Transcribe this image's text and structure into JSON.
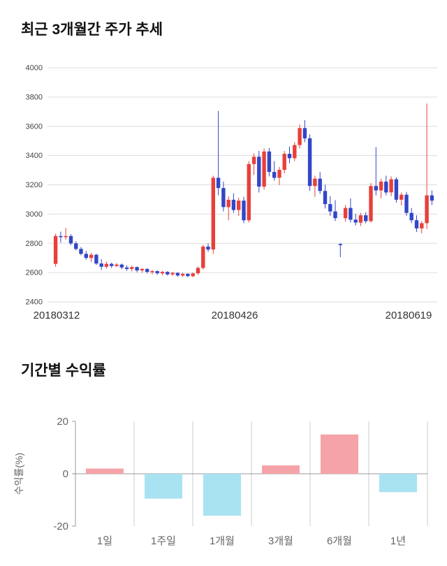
{
  "chart_data": [
    {
      "type": "candlestick",
      "title": "최근 3개월간 주가 추세",
      "ylim": [
        2400,
        4000
      ],
      "yticks": [
        2400,
        2600,
        2800,
        3000,
        3200,
        3400,
        3600,
        3800,
        4000
      ],
      "x_tick_labels": [
        "20180312",
        "20180426",
        "20180619"
      ],
      "grid": true,
      "colors": {
        "up": "#e8403a",
        "down": "#3246c8",
        "grid": "#dddddd",
        "tick_text": "#444444",
        "x_label_text": "#333333"
      },
      "candles": [
        [
          2660,
          2865,
          2640,
          2850
        ],
        [
          2850,
          2880,
          2805,
          2845
        ],
        [
          2845,
          2905,
          2825,
          2850
        ],
        [
          2850,
          2862,
          2788,
          2800
        ],
        [
          2800,
          2815,
          2752,
          2762
        ],
        [
          2762,
          2775,
          2718,
          2728
        ],
        [
          2728,
          2748,
          2688,
          2700
        ],
        [
          2700,
          2735,
          2672,
          2722
        ],
        [
          2722,
          2728,
          2652,
          2662
        ],
        [
          2662,
          2692,
          2618,
          2640
        ],
        [
          2640,
          2675,
          2628,
          2660
        ],
        [
          2660,
          2668,
          2632,
          2645
        ],
        [
          2645,
          2665,
          2638,
          2655
        ],
        [
          2655,
          2662,
          2622,
          2635
        ],
        [
          2635,
          2650,
          2612,
          2625
        ],
        [
          2625,
          2648,
          2608,
          2638
        ],
        [
          2638,
          2642,
          2602,
          2615
        ],
        [
          2615,
          2632,
          2598,
          2625
        ],
        [
          2625,
          2630,
          2595,
          2605
        ],
        [
          2605,
          2618,
          2588,
          2610
        ],
        [
          2610,
          2615,
          2585,
          2595
        ],
        [
          2595,
          2612,
          2582,
          2605
        ],
        [
          2605,
          2610,
          2580,
          2588
        ],
        [
          2588,
          2605,
          2576,
          2598
        ],
        [
          2598,
          2602,
          2572,
          2580
        ],
        [
          2580,
          2598,
          2570,
          2592
        ],
        [
          2592,
          2596,
          2568,
          2576
        ],
        [
          2576,
          2600,
          2568,
          2595
        ],
        [
          2595,
          2642,
          2585,
          2632
        ],
        [
          2632,
          2790,
          2622,
          2778
        ],
        [
          2778,
          2800,
          2742,
          2758
        ],
        [
          2758,
          3262,
          2728,
          3248
        ],
        [
          3248,
          3705,
          3128,
          3178
        ],
        [
          3178,
          3222,
          3018,
          3048
        ],
        [
          3048,
          3122,
          2958,
          3098
        ],
        [
          3098,
          3142,
          3008,
          3028
        ],
        [
          3028,
          3112,
          2988,
          3092
        ],
        [
          3092,
          3118,
          2938,
          2958
        ],
        [
          2958,
          3362,
          2942,
          3342
        ],
        [
          3342,
          3415,
          3268,
          3392
        ],
        [
          3392,
          3432,
          3148,
          3188
        ],
        [
          3188,
          3448,
          3168,
          3428
        ],
        [
          3428,
          3452,
          3258,
          3288
        ],
        [
          3288,
          3362,
          3228,
          3248
        ],
        [
          3248,
          3322,
          3198,
          3302
        ],
        [
          3302,
          3432,
          3278,
          3412
        ],
        [
          3412,
          3462,
          3348,
          3382
        ],
        [
          3382,
          3492,
          3362,
          3472
        ],
        [
          3472,
          3612,
          3448,
          3588
        ],
        [
          3588,
          3642,
          3492,
          3518
        ],
        [
          3518,
          3545,
          3158,
          3192
        ],
        [
          3192,
          3262,
          3118,
          3242
        ],
        [
          3242,
          3288,
          3138,
          3158
        ],
        [
          3158,
          3202,
          3038,
          3068
        ],
        [
          3068,
          3122,
          2988,
          3018
        ],
        [
          3018,
          3095,
          2952,
          2972
        ],
        [
          2795,
          2802,
          2705,
          2788
        ],
        [
          2972,
          3062,
          2948,
          3042
        ],
        [
          3042,
          3108,
          2942,
          2962
        ],
        [
          2962,
          3002,
          2922,
          2942
        ],
        [
          2942,
          3008,
          2918,
          2992
        ],
        [
          2992,
          3012,
          2938,
          2952
        ],
        [
          2952,
          3212,
          2942,
          3192
        ],
        [
          3192,
          3458,
          3128,
          3162
        ],
        [
          3162,
          3242,
          3108,
          3222
        ],
        [
          3222,
          3262,
          3128,
          3148
        ],
        [
          3148,
          3258,
          3122,
          3238
        ],
        [
          3238,
          3252,
          3078,
          3098
        ],
        [
          3098,
          3148,
          3058,
          3132
        ],
        [
          3132,
          3152,
          2988,
          3008
        ],
        [
          3008,
          3042,
          2938,
          2958
        ],
        [
          2958,
          2992,
          2878,
          2902
        ],
        [
          2902,
          2952,
          2868,
          2938
        ],
        [
          2938,
          3755,
          2898,
          3128
        ],
        [
          3128,
          3162,
          3062,
          3092
        ]
      ]
    },
    {
      "type": "bar",
      "title": "기간별 수익률",
      "ylabel": "수익률(%)",
      "categories": [
        "1일",
        "1주일",
        "1개월",
        "3개월",
        "6개월",
        "1년"
      ],
      "values": [
        2,
        -9.5,
        -16,
        3.2,
        15,
        -7
      ],
      "ylim": [
        -20,
        20
      ],
      "yticks": [
        20,
        0,
        -20
      ],
      "grid": true,
      "legend": "none",
      "colors": {
        "positive": "#f5a3a8",
        "negative": "#a9e2f0",
        "grid": "#cccccc",
        "axis": "#999999",
        "text": "#666666"
      }
    }
  ]
}
